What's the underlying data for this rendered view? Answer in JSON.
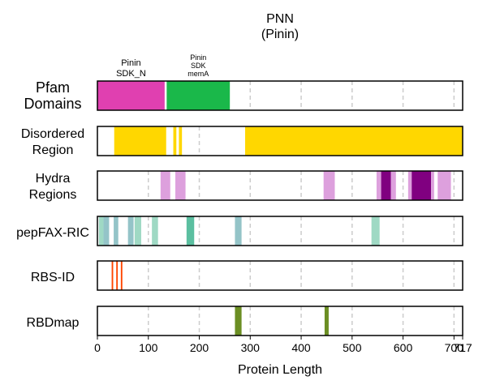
{
  "chart_data": {
    "type": "bar",
    "title": [
      "PNN",
      "(Pinin)"
    ],
    "xlabel": "Protein Length",
    "xlim": [
      0,
      717
    ],
    "xticks": [
      0,
      100,
      200,
      300,
      400,
      500,
      600,
      700,
      717
    ],
    "xtick_labels": [
      "0",
      "100",
      "200",
      "300",
      "400",
      "500",
      "600",
      "700",
      "717"
    ],
    "grid": "vertical dashed",
    "tracks": [
      {
        "id": "pfam",
        "label": [
          "Pfam",
          "Domains"
        ],
        "segments": [
          {
            "start": 0,
            "end": 132,
            "color": "#e040b0"
          },
          {
            "start": 136,
            "end": 260,
            "color": "#1ab84a"
          }
        ],
        "annotations": [
          {
            "lines": [
              "Pinin",
              "SDK_N"
            ],
            "pos": 66
          },
          {
            "lines": [
              "Pinin",
              "SDK",
              "memA"
            ],
            "pos": 198
          }
        ]
      },
      {
        "id": "disordered",
        "label": [
          "Disordered",
          "Region"
        ],
        "segments": [
          {
            "start": 33,
            "end": 135,
            "color": "#ffd700"
          },
          {
            "start": 149,
            "end": 155,
            "color": "#ffd700"
          },
          {
            "start": 160,
            "end": 166,
            "color": "#ffd700"
          },
          {
            "start": 290,
            "end": 717,
            "color": "#ffd700"
          }
        ]
      },
      {
        "id": "hydra",
        "label": [
          "Hydra",
          "Regions"
        ],
        "segments": [
          {
            "start": 124,
            "end": 143,
            "color": "#dda0dd"
          },
          {
            "start": 153,
            "end": 173,
            "color": "#dda0dd"
          },
          {
            "start": 444,
            "end": 466,
            "color": "#dda0dd"
          },
          {
            "start": 548,
            "end": 557,
            "color": "#dda0dd"
          },
          {
            "start": 557,
            "end": 576,
            "color": "#800080"
          },
          {
            "start": 576,
            "end": 586,
            "color": "#dda0dd"
          },
          {
            "start": 610,
            "end": 617,
            "color": "#dda0dd"
          },
          {
            "start": 617,
            "end": 655,
            "color": "#800080"
          },
          {
            "start": 655,
            "end": 661,
            "color": "#dda0dd"
          },
          {
            "start": 668,
            "end": 694,
            "color": "#dda0dd"
          }
        ]
      },
      {
        "id": "pepfax",
        "label": [
          "pepFAX-RIC"
        ],
        "segments": [
          {
            "start": 3,
            "end": 12,
            "color": "#9fd9c4"
          },
          {
            "start": 12,
            "end": 23,
            "color": "#94c4c8"
          },
          {
            "start": 32,
            "end": 41,
            "color": "#94c4c8"
          },
          {
            "start": 60,
            "end": 71,
            "color": "#94c4c8"
          },
          {
            "start": 73,
            "end": 86,
            "color": "#9fd9c4"
          },
          {
            "start": 107,
            "end": 119,
            "color": "#9fd9c4"
          },
          {
            "start": 175,
            "end": 190,
            "color": "#5bbfa0"
          },
          {
            "start": 270,
            "end": 283,
            "color": "#94c4c8"
          },
          {
            "start": 538,
            "end": 554,
            "color": "#9fd9c4"
          }
        ]
      },
      {
        "id": "rbsid",
        "label": [
          "RBS-ID"
        ],
        "segments": [
          {
            "start": 28,
            "end": 31,
            "color": "#ff4500"
          },
          {
            "start": 37,
            "end": 40,
            "color": "#ff4500"
          },
          {
            "start": 46,
            "end": 49,
            "color": "#ff4500"
          }
        ]
      },
      {
        "id": "rbdmap",
        "label": [
          "RBDmap"
        ],
        "segments": [
          {
            "start": 270,
            "end": 283,
            "color": "#6b8e23"
          },
          {
            "start": 446,
            "end": 454,
            "color": "#6b8e23"
          }
        ]
      }
    ]
  }
}
